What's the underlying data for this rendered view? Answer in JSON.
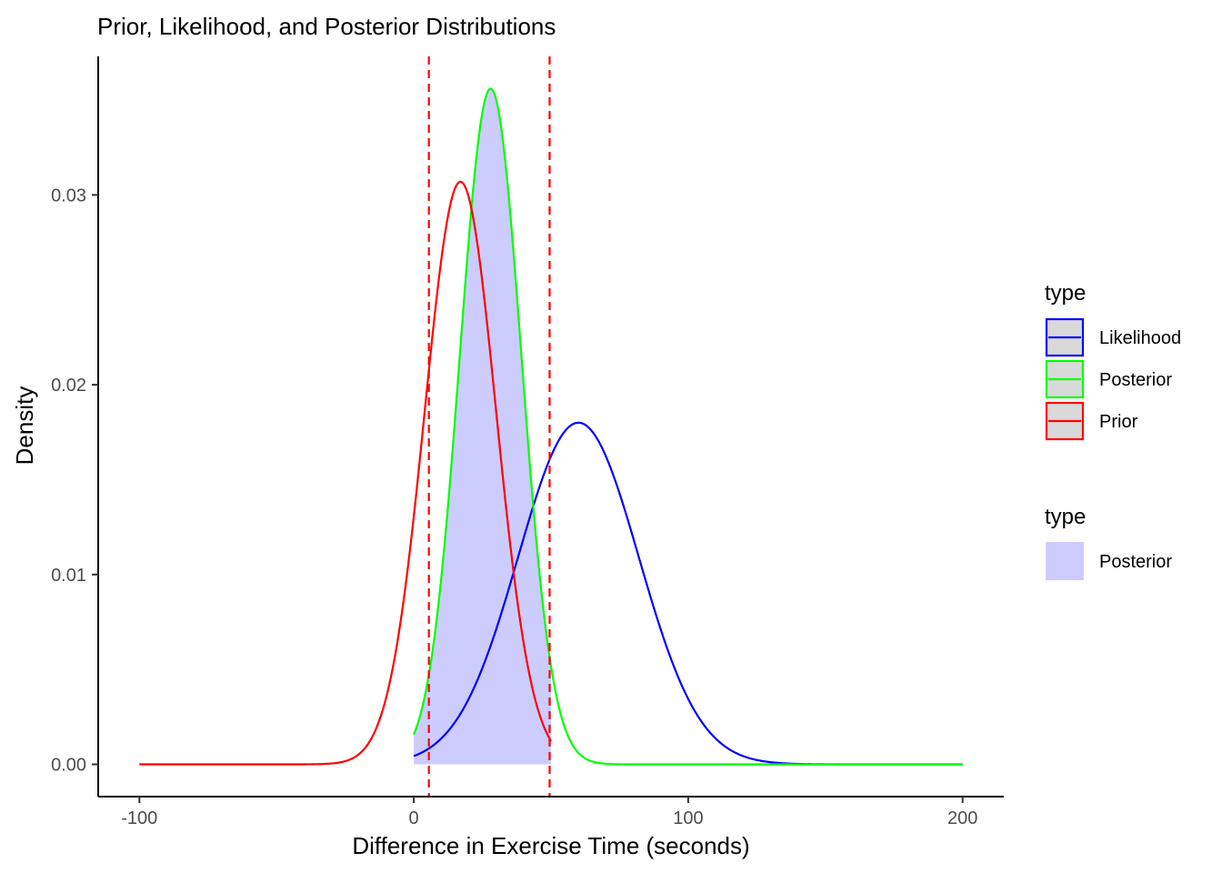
{
  "chart_data": {
    "type": "line",
    "title": "Prior, Likelihood, and Posterior Distributions",
    "xlabel": "Difference in Exercise Time (seconds)",
    "ylabel": "Density",
    "xlim": [
      -115,
      215
    ],
    "ylim": [
      -0.0017,
      0.0373
    ],
    "x_ticks": [
      -100,
      0,
      100,
      200
    ],
    "x_tick_labels": [
      "-100",
      "0",
      "100",
      "200"
    ],
    "y_ticks": [
      0.0,
      0.01,
      0.02,
      0.03
    ],
    "y_tick_labels": [
      "0.00",
      "0.01",
      "0.02",
      "0.03"
    ],
    "grid": false,
    "legend_position": "right",
    "legends": [
      {
        "title": "type",
        "kind": "line",
        "entries": [
          {
            "label": "Likelihood",
            "color": "#0000ff"
          },
          {
            "label": "Posterior",
            "color": "#00ff00"
          },
          {
            "label": "Prior",
            "color": "#ff0000"
          }
        ]
      },
      {
        "title": "type",
        "kind": "fill",
        "entries": [
          {
            "label": "Posterior",
            "color": "#ccccff"
          }
        ]
      }
    ],
    "series": [
      {
        "name": "Prior",
        "distribution": "normal",
        "mean": 17,
        "sd": 13,
        "peak_density": 0.0307,
        "x_range": [
          -100,
          50
        ],
        "color": "#ff0000"
      },
      {
        "name": "Likelihood",
        "distribution": "normal",
        "mean": 60,
        "sd": 22,
        "peak_density": 0.018,
        "x_range": [
          0,
          200
        ],
        "color": "#0000ff"
      },
      {
        "name": "Posterior",
        "distribution": "normal",
        "mean": 28,
        "sd": 11.2,
        "peak_density": 0.0356,
        "x_range": [
          0,
          200
        ],
        "color": "#00ff00"
      }
    ],
    "shaded_area": {
      "series": "Posterior",
      "x_range": [
        0,
        50
      ],
      "color": "#ccccff"
    },
    "vlines": [
      {
        "x": 5.5,
        "color": "#ff0000",
        "style": "dashed"
      },
      {
        "x": 49.5,
        "color": "#ff0000",
        "style": "dashed"
      }
    ]
  }
}
